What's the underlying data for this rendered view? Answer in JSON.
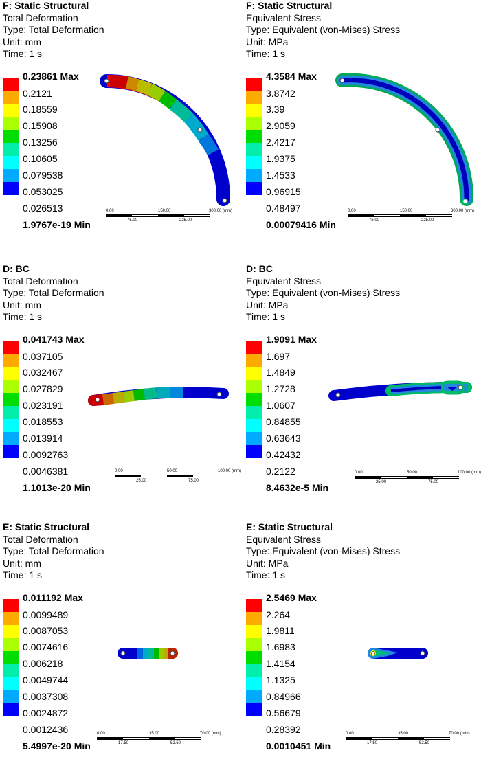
{
  "colors": {
    "legend": [
      "#ff0000",
      "#ffaa00",
      "#ffff00",
      "#aaff00",
      "#00dd00",
      "#00eeaa",
      "#00ffff",
      "#00aaff",
      "#0000ff"
    ],
    "contour_stress_core": "#1a6fd6"
  },
  "panels": [
    {
      "id": "f-deformation",
      "title": "F: Static Structural",
      "subtitle": "Total Deformation",
      "type": "Type: Total Deformation",
      "unit": "Unit: mm",
      "time": "Time: 1 s",
      "legend_values": [
        "0.23861 Max",
        "0.2121",
        "0.18559",
        "0.15908",
        "0.13256",
        "0.10605",
        "0.079538",
        "0.053025",
        "0.026513",
        "1.9767e-19 Min"
      ],
      "scale_ticks_top": [
        "0.00",
        "150.00",
        "300.00 (mm)"
      ],
      "scale_ticks_bottom": [
        "75.00",
        "225.00"
      ]
    },
    {
      "id": "f-stress",
      "title": "F: Static Structural",
      "subtitle": "Equivalent Stress",
      "type": "Type: Equivalent (von-Mises) Stress",
      "unit": "Unit: MPa",
      "time": "Time: 1 s",
      "legend_values": [
        "4.3584 Max",
        "3.8742",
        "3.39",
        "2.9059",
        "2.4217",
        "1.9375",
        "1.4533",
        "0.96915",
        "0.48497",
        "0.00079416 Min"
      ],
      "scale_ticks_top": [
        "0.00",
        "150.00",
        "300.00 (mm)"
      ],
      "scale_ticks_bottom": [
        "75.00",
        "225.00"
      ]
    },
    {
      "id": "d-deformation",
      "title": "D: BC",
      "subtitle": "Total Deformation",
      "type": "Type: Total Deformation",
      "unit": "Unit: mm",
      "time": "Time: 1 s",
      "legend_values": [
        "0.041743 Max",
        "0.037105",
        "0.032467",
        "0.027829",
        "0.023191",
        "0.018553",
        "0.013914",
        "0.0092763",
        "0.0046381",
        "1.1013e-20 Min"
      ],
      "scale_ticks_top": [
        "0.00",
        "50.00",
        "100.00 (mm)"
      ],
      "scale_ticks_bottom": [
        "25.00",
        "75.00"
      ]
    },
    {
      "id": "d-stress",
      "title": "D: BC",
      "subtitle": "Equivalent Stress",
      "type": "Type: Equivalent (von-Mises) Stress",
      "unit": "Unit: MPa",
      "time": "Time: 1 s",
      "legend_values": [
        "1.9091 Max",
        "1.697",
        "1.4849",
        "1.2728",
        "1.0607",
        "0.84855",
        "0.63643",
        "0.42432",
        "0.2122",
        "8.4632e-5 Min"
      ],
      "scale_ticks_top": [
        "0.00",
        "50.00",
        "100.00 (mm)"
      ],
      "scale_ticks_bottom": [
        "25.00",
        "75.00"
      ]
    },
    {
      "id": "e-deformation",
      "title": "E: Static Structural",
      "subtitle": "Total Deformation",
      "type": "Type: Total Deformation",
      "unit": "Unit: mm",
      "time": "Time: 1 s",
      "legend_values": [
        "0.011192 Max",
        "0.0099489",
        "0.0087053",
        "0.0074616",
        "0.006218",
        "0.0049744",
        "0.0037308",
        "0.0024872",
        "0.0012436",
        "5.4997e-20 Min"
      ],
      "scale_ticks_top": [
        "0.00",
        "35.00",
        "70.00 (mm)"
      ],
      "scale_ticks_bottom": [
        "17.50",
        "52.50"
      ]
    },
    {
      "id": "e-stress",
      "title": "E: Static Structural",
      "subtitle": "Equivalent Stress",
      "type": "Type: Equivalent (von-Mises) Stress",
      "unit": "Unit: MPa",
      "time": "Time: 1 s",
      "legend_values": [
        "2.5469 Max",
        "2.264",
        "1.9811",
        "1.6983",
        "1.4154",
        "1.1325",
        "0.84966",
        "0.56679",
        "0.28392",
        "0.0010451 Min"
      ],
      "scale_ticks_top": [
        "0.00",
        "35.00",
        "70.00 (mm)"
      ],
      "scale_ticks_bottom": [
        "17.50",
        "52.50"
      ]
    }
  ]
}
